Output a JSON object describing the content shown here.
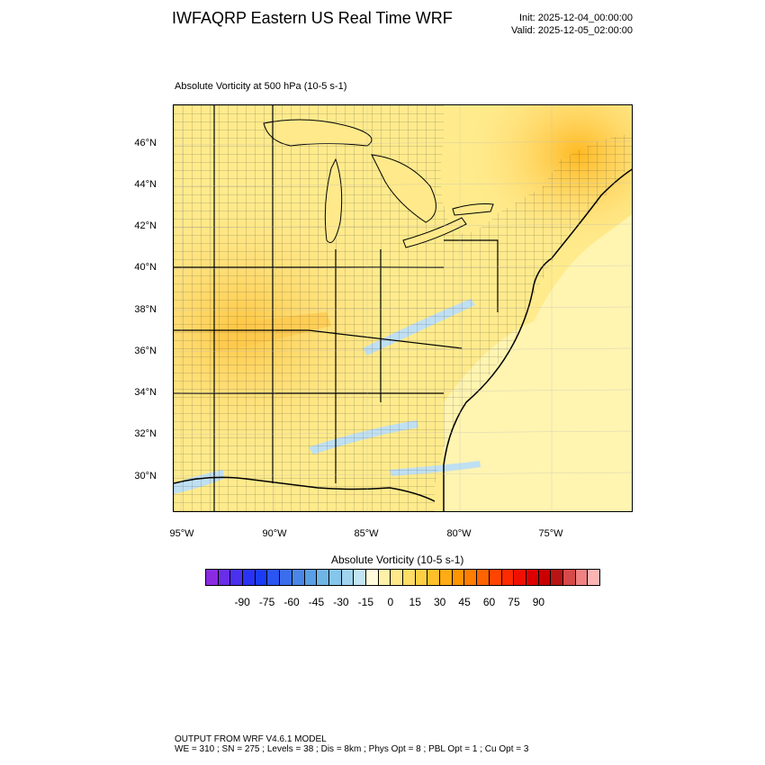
{
  "title": "IWFAQRP Eastern US Real Time WRF",
  "init": "Init: 2025-12-04_00:00:00",
  "valid": "Valid: 2025-12-05_02:00:00",
  "field_label": "Absolute Vorticity at 500 hPa   (10-5 s-1)",
  "lat_labels": [
    "46°N",
    "44°N",
    "42°N",
    "40°N",
    "38°N",
    "36°N",
    "34°N",
    "32°N",
    "30°N"
  ],
  "lon_labels": [
    "95°W",
    "90°W",
    "85°W",
    "80°W",
    "75°W"
  ],
  "colorbar": {
    "title": "Absolute Vorticity  (10-5 s-1)",
    "ticks": [
      "-90",
      "-75",
      "-60",
      "-45",
      "-30",
      "-15",
      "0",
      "15",
      "30",
      "45",
      "60",
      "75",
      "90"
    ],
    "colors": [
      "#8a2be2",
      "#6a2de8",
      "#4a30ef",
      "#2a33f5",
      "#1a3cf5",
      "#2a55f0",
      "#3a6eec",
      "#4a86e8",
      "#5a9ee4",
      "#6fb4e6",
      "#86c6ea",
      "#a0d4ee",
      "#c3e4f4",
      "#fffadc",
      "#fff2a8",
      "#ffe98a",
      "#ffdd66",
      "#ffcf44",
      "#ffbf2a",
      "#ffab14",
      "#ff9400",
      "#ff7d00",
      "#ff6300",
      "#ff4400",
      "#ff2a00",
      "#f01000",
      "#de0000",
      "#c80000",
      "#b81414",
      "#d64a4a",
      "#f08282",
      "#ffb4b4"
    ]
  },
  "footer": {
    "line1": "OUTPUT FROM WRF V4.6.1 MODEL",
    "line2": "WE = 310 ; SN = 275 ; Levels = 38 ; Dis = 8km ; Phys Opt = 8 ; PBL Opt = 1 ; Cu Opt = 3"
  }
}
